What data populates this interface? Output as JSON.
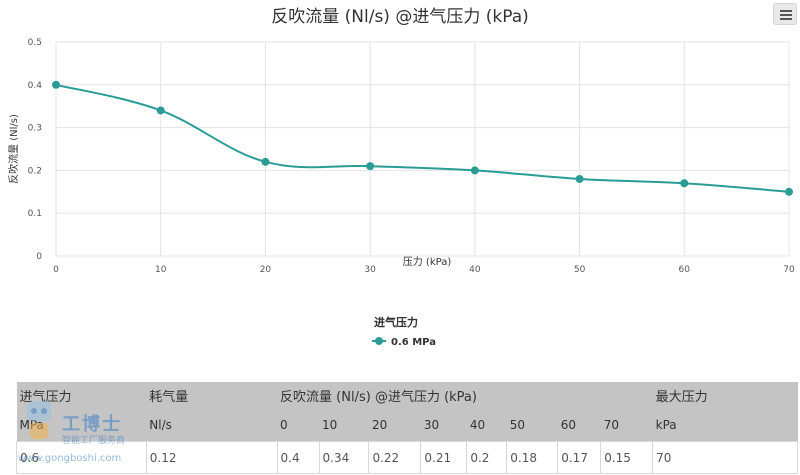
{
  "chart_data": {
    "type": "line",
    "title": "反吹流量 (Nl/s) @进气压力 (kPa)",
    "xlabel": "压力 (kPa)",
    "ylabel": "反吹流量 (Nl/s)",
    "x": [
      0,
      10,
      20,
      30,
      40,
      50,
      60,
      70
    ],
    "xlim": [
      0,
      70
    ],
    "ylim": [
      0,
      0.5
    ],
    "xticks": [
      "0",
      "10",
      "20",
      "30",
      "40",
      "50",
      "60",
      "70"
    ],
    "yticks": [
      "0",
      "0.1",
      "0.2",
      "0.3",
      "0.4",
      "0.5"
    ],
    "grid": true,
    "series": [
      {
        "name": "0.6 MPa",
        "values": [
          0.4,
          0.34,
          0.22,
          0.21,
          0.2,
          0.18,
          0.17,
          0.15
        ],
        "color": "#2a9c96"
      }
    ],
    "legend": {
      "title": "进气压力",
      "placement": "bottom-center"
    }
  },
  "menu": {
    "icon": "hamburger-menu-icon"
  },
  "table": {
    "header1": {
      "inlet_pressure": "进气压力",
      "air_consumption": "耗气量",
      "purge_flow": "反吹流量 (Nl/s) @进气压力 (kPa)",
      "max_pressure": "最大压力"
    },
    "header2": {
      "inlet_unit": "MPa",
      "consumption_unit": "Nl/s",
      "pressures": [
        "0",
        "10",
        "20",
        "30",
        "40",
        "50",
        "60",
        "70"
      ],
      "max_unit": "kPa"
    },
    "row": {
      "inlet": "0.6",
      "consumption": "0.12",
      "flows": [
        "0.4",
        "0.34",
        "0.22",
        "0.21",
        "0.2",
        "0.18",
        "0.17",
        "0.15"
      ],
      "max": "70"
    }
  },
  "watermark": {
    "brand": "工博士",
    "sub": "智能工厂服务商",
    "url": "www.gongboshi.com"
  }
}
